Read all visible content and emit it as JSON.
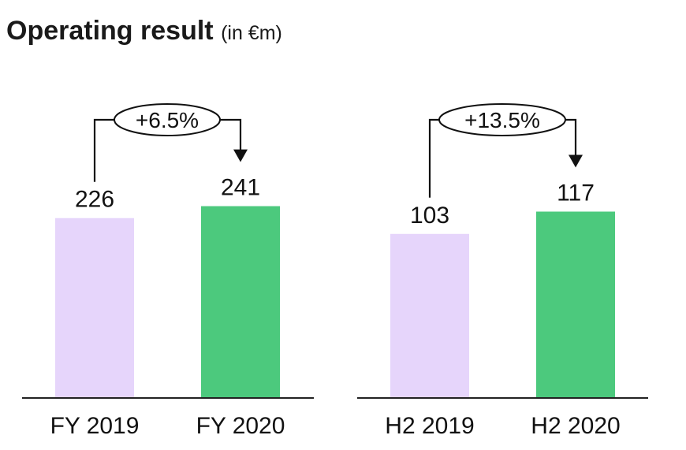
{
  "title": "Operating result",
  "subtitle": "(in €m)",
  "chart_data": [
    {
      "type": "bar",
      "categories": [
        "FY 2019",
        "FY 2020"
      ],
      "values": [
        226,
        241
      ],
      "colors": [
        "#e6d5fb",
        "#4cc97d"
      ],
      "change_label": "+6.5%",
      "ylim": [
        0,
        300
      ]
    },
    {
      "type": "bar",
      "categories": [
        "H2 2019",
        "H2 2020"
      ],
      "values": [
        103,
        117
      ],
      "colors": [
        "#e6d5fb",
        "#4cc97d"
      ],
      "change_label": "+13.5%",
      "ylim": [
        0,
        140
      ]
    }
  ]
}
